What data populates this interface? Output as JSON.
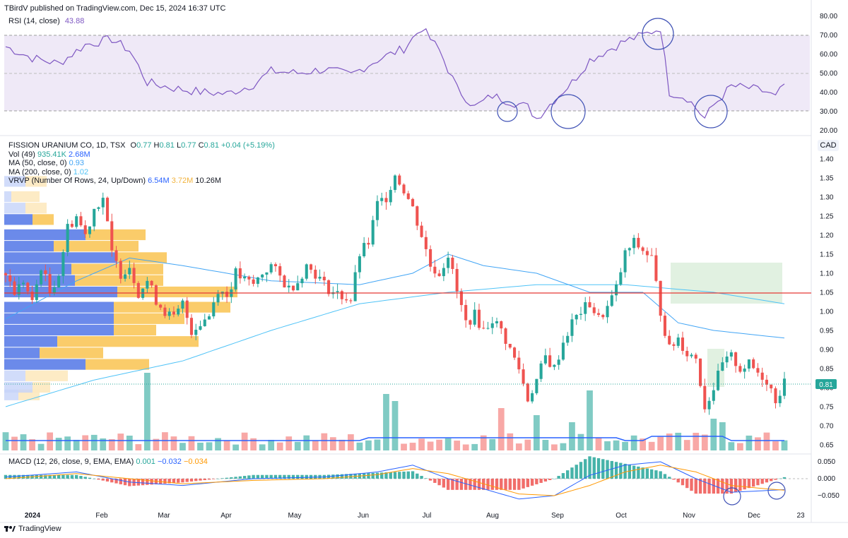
{
  "header": {
    "published": "TBirdV published on TradingView.com, Dec 15, 2024 16:37 UTC"
  },
  "rsi": {
    "label": "RSI (14, close)",
    "value": "43.88",
    "ticks": [
      "80.00",
      "70.00",
      "60.00",
      "50.00",
      "40.00",
      "30.00",
      "20.00"
    ],
    "color": "#7e57c2"
  },
  "main": {
    "symbol": "FISSION URANIUM CO, 1D, TSX",
    "o_label": "O",
    "o": "0.77",
    "h_label": "H",
    "h": "0.81",
    "l_label": "L",
    "l": "0.77",
    "c_label": "C",
    "c": "0.81",
    "change": "+0.04 (+5.19%)",
    "vol_label": "Vol (49)",
    "vol_a": "935.41K",
    "vol_b": "2.68M",
    "ma50_label": "MA (50, close, 0)",
    "ma50": "0.93",
    "ma200_label": "MA (200, close, 0)",
    "ma200": "1.02",
    "vrvp_label": "VRVP (Number Of Rows, 24, Up/Down)",
    "vrvp_a": "6.54M",
    "vrvp_b": "3.72M",
    "vrvp_c": "10.26M",
    "currency": "CAD",
    "price_ticks": [
      "1.40",
      "1.35",
      "1.30",
      "1.25",
      "1.20",
      "1.15",
      "1.10",
      "1.05",
      "1.00",
      "0.95",
      "0.90",
      "0.85",
      "0.80",
      "0.75",
      "0.70",
      "0.65"
    ],
    "last_price": "0.81"
  },
  "macd": {
    "label": "MACD (12, 26, close, 9, EMA, EMA)",
    "v1": "0.001",
    "v2": "−0.032",
    "v3": "−0.034",
    "ticks": [
      "0.050",
      "0.000",
      "−0.050"
    ]
  },
  "xaxis": [
    "2024",
    "Feb",
    "Mar",
    "Apr",
    "May",
    "Jun",
    "Jul",
    "Aug",
    "Sep",
    "Oct",
    "Nov",
    "Dec",
    "23"
  ],
  "footer": {
    "brand": "TradingView"
  },
  "colors": {
    "up": "#26a69a",
    "down": "#ef5350",
    "ma50": "#42a5f5",
    "ma200": "#4fc3f7",
    "hline": "#e53935",
    "vol_ma": "#2962ff",
    "macd": "#2962ff",
    "signal": "#ff9800"
  },
  "chart_data": {
    "type": "candlestick",
    "title": "FISSION URANIUM CO, 1D, TSX",
    "ylim": [
      0.63,
      1.42
    ],
    "horizontal_line": 1.045,
    "x": [
      "Jan",
      "Feb",
      "Mar",
      "Apr",
      "May",
      "Jun",
      "Jul",
      "Aug",
      "Sep",
      "Oct",
      "Nov",
      "Dec"
    ],
    "close_path": [
      [
        0,
        1.1
      ],
      [
        1,
        1.05
      ],
      [
        2,
        1.08
      ],
      [
        3,
        1.02
      ],
      [
        4,
        1.12
      ],
      [
        5,
        1.05
      ],
      [
        6,
        1.1
      ],
      [
        7,
        1.22
      ],
      [
        8,
        1.25
      ],
      [
        9,
        1.2
      ],
      [
        10,
        1.27
      ],
      [
        11,
        1.3
      ],
      [
        12,
        1.15
      ],
      [
        13,
        1.1
      ],
      [
        14,
        1.12
      ],
      [
        15,
        1.05
      ],
      [
        16,
        1.08
      ],
      [
        17,
        1.03
      ],
      [
        18,
        1.0
      ],
      [
        19,
        0.98
      ],
      [
        20,
        1.02
      ],
      [
        21,
        0.95
      ],
      [
        22,
        0.97
      ],
      [
        23,
        0.99
      ],
      [
        24,
        1.06
      ],
      [
        25,
        1.04
      ],
      [
        26,
        1.1
      ],
      [
        27,
        1.08
      ],
      [
        28,
        1.07
      ],
      [
        29,
        1.1
      ],
      [
        30,
        1.12
      ],
      [
        31,
        1.09
      ],
      [
        32,
        1.06
      ],
      [
        33,
        1.08
      ],
      [
        34,
        1.12
      ],
      [
        35,
        1.1
      ],
      [
        36,
        1.07
      ],
      [
        37,
        1.05
      ],
      [
        38,
        1.04
      ],
      [
        39,
        1.03
      ],
      [
        40,
        1.15
      ],
      [
        41,
        1.18
      ],
      [
        42,
        1.28
      ],
      [
        43,
        1.3
      ],
      [
        44,
        1.36
      ],
      [
        45,
        1.32
      ],
      [
        46,
        1.27
      ],
      [
        47,
        1.2
      ],
      [
        48,
        1.12
      ],
      [
        49,
        1.1
      ],
      [
        50,
        1.15
      ],
      [
        51,
        1.05
      ],
      [
        52,
        0.97
      ],
      [
        53,
        0.99
      ],
      [
        54,
        0.95
      ],
      [
        55,
        0.98
      ],
      [
        56,
        0.95
      ],
      [
        57,
        0.9
      ],
      [
        58,
        0.85
      ],
      [
        59,
        0.77
      ],
      [
        60,
        0.82
      ],
      [
        61,
        0.88
      ],
      [
        62,
        0.85
      ],
      [
        63,
        0.92
      ],
      [
        64,
        0.97
      ],
      [
        65,
        1.0
      ],
      [
        66,
        1.02
      ],
      [
        67,
        0.98
      ],
      [
        68,
        1.01
      ],
      [
        69,
        1.06
      ],
      [
        70,
        1.15
      ],
      [
        71,
        1.18
      ],
      [
        72,
        1.16
      ],
      [
        73,
        1.14
      ],
      [
        74,
        1.0
      ],
      [
        75,
        0.9
      ],
      [
        76,
        0.93
      ],
      [
        77,
        0.89
      ],
      [
        78,
        0.88
      ],
      [
        79,
        0.75
      ],
      [
        80,
        0.8
      ],
      [
        81,
        0.86
      ],
      [
        82,
        0.88
      ],
      [
        83,
        0.85
      ],
      [
        84,
        0.86
      ],
      [
        85,
        0.84
      ],
      [
        86,
        0.82
      ],
      [
        87,
        0.77
      ],
      [
        88,
        0.81
      ]
    ],
    "ma50_path": [
      [
        0,
        0.98
      ],
      [
        8,
        1.08
      ],
      [
        14,
        1.14
      ],
      [
        20,
        1.12
      ],
      [
        30,
        1.08
      ],
      [
        40,
        1.07
      ],
      [
        46,
        1.1
      ],
      [
        50,
        1.15
      ],
      [
        54,
        1.12
      ],
      [
        60,
        1.1
      ],
      [
        66,
        1.05
      ],
      [
        72,
        1.05
      ],
      [
        76,
        0.97
      ],
      [
        80,
        0.95
      ],
      [
        88,
        0.93
      ]
    ],
    "ma200_path": [
      [
        0,
        0.75
      ],
      [
        10,
        0.82
      ],
      [
        20,
        0.87
      ],
      [
        30,
        0.95
      ],
      [
        40,
        1.02
      ],
      [
        50,
        1.05
      ],
      [
        60,
        1.07
      ],
      [
        70,
        1.07
      ],
      [
        80,
        1.05
      ],
      [
        88,
        1.02
      ]
    ],
    "rsi_path": [
      [
        0,
        64
      ],
      [
        3,
        58
      ],
      [
        6,
        55
      ],
      [
        9,
        65
      ],
      [
        12,
        68
      ],
      [
        14,
        62
      ],
      [
        16,
        45
      ],
      [
        19,
        42
      ],
      [
        22,
        40
      ],
      [
        25,
        39
      ],
      [
        28,
        44
      ],
      [
        30,
        51
      ],
      [
        33,
        50
      ],
      [
        36,
        52
      ],
      [
        39,
        49
      ],
      [
        42,
        57
      ],
      [
        45,
        63
      ],
      [
        47,
        74
      ],
      [
        49,
        62
      ],
      [
        51,
        42
      ],
      [
        53,
        32
      ],
      [
        55,
        38
      ],
      [
        57,
        35
      ],
      [
        59,
        32
      ],
      [
        60,
        26
      ],
      [
        62,
        36
      ],
      [
        64,
        45
      ],
      [
        66,
        57
      ],
      [
        68,
        62
      ],
      [
        70,
        67
      ],
      [
        72,
        70
      ],
      [
        74,
        74
      ],
      [
        75,
        40
      ],
      [
        77,
        37
      ],
      [
        79,
        26
      ],
      [
        80,
        33
      ],
      [
        82,
        43
      ],
      [
        84,
        42
      ],
      [
        86,
        40
      ],
      [
        87,
        37
      ],
      [
        88,
        44
      ]
    ],
    "macd_path": [
      [
        0,
        0.005
      ],
      [
        8,
        0.02
      ],
      [
        14,
        -0.01
      ],
      [
        20,
        -0.02
      ],
      [
        28,
        0.0
      ],
      [
        36,
        0.005
      ],
      [
        42,
        0.02
      ],
      [
        46,
        0.04
      ],
      [
        50,
        0.0
      ],
      [
        54,
        -0.03
      ],
      [
        58,
        -0.06
      ],
      [
        62,
        -0.05
      ],
      [
        66,
        0.01
      ],
      [
        70,
        0.04
      ],
      [
        74,
        0.05
      ],
      [
        78,
        0.0
      ],
      [
        82,
        -0.04
      ],
      [
        86,
        -0.035
      ],
      [
        88,
        -0.032
      ]
    ],
    "signal_path": [
      [
        0,
        0.0
      ],
      [
        8,
        0.015
      ],
      [
        14,
        0.0
      ],
      [
        20,
        -0.015
      ],
      [
        28,
        -0.005
      ],
      [
        36,
        0.0
      ],
      [
        42,
        0.012
      ],
      [
        46,
        0.03
      ],
      [
        50,
        0.015
      ],
      [
        54,
        -0.015
      ],
      [
        58,
        -0.045
      ],
      [
        62,
        -0.05
      ],
      [
        66,
        -0.02
      ],
      [
        70,
        0.02
      ],
      [
        74,
        0.04
      ],
      [
        78,
        0.02
      ],
      [
        82,
        -0.02
      ],
      [
        86,
        -0.03
      ],
      [
        88,
        -0.034
      ]
    ]
  }
}
